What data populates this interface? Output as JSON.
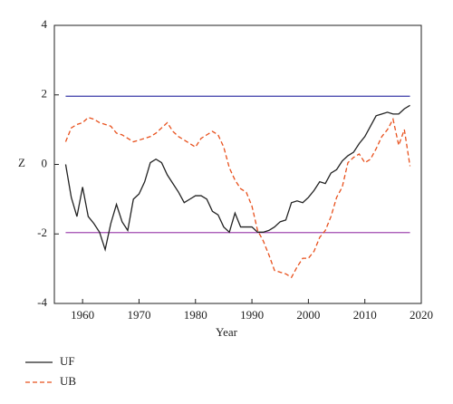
{
  "chart_data": {
    "type": "line",
    "x_label": "Year",
    "y_label": "Z",
    "x": [
      1957,
      1958,
      1959,
      1960,
      1961,
      1962,
      1963,
      1964,
      1965,
      1966,
      1967,
      1968,
      1969,
      1970,
      1971,
      1972,
      1973,
      1974,
      1975,
      1976,
      1977,
      1978,
      1979,
      1980,
      1981,
      1982,
      1983,
      1984,
      1985,
      1986,
      1987,
      1988,
      1989,
      1990,
      1991,
      1992,
      1993,
      1994,
      1995,
      1996,
      1997,
      1998,
      1999,
      2000,
      2001,
      2002,
      2003,
      2004,
      2005,
      2006,
      2007,
      2008,
      2009,
      2010,
      2011,
      2012,
      2013,
      2014,
      2015,
      2016,
      2017,
      2018
    ],
    "series": [
      {
        "name": "UF",
        "color": "#222222",
        "dash": "solid",
        "values": [
          0,
          -0.95,
          -1.5,
          -0.65,
          -1.5,
          -1.7,
          -1.95,
          -2.45,
          -1.7,
          -1.15,
          -1.65,
          -1.9,
          -1.0,
          -0.85,
          -0.5,
          0.05,
          0.15,
          0.05,
          -0.3,
          -0.55,
          -0.8,
          -1.1,
          -1.0,
          -0.9,
          -0.9,
          -1.0,
          -1.35,
          -1.45,
          -1.8,
          -1.95,
          -1.4,
          -1.8,
          -1.8,
          -1.8,
          -1.95,
          -1.95,
          -1.9,
          -1.8,
          -1.65,
          -1.6,
          -1.1,
          -1.05,
          -1.1,
          -0.95,
          -0.75,
          -0.5,
          -0.55,
          -0.25,
          -0.15,
          0.1,
          0.25,
          0.35,
          0.6,
          0.8,
          1.1,
          1.4,
          1.45,
          1.5,
          1.45,
          1.45,
          1.6,
          1.7
        ]
      },
      {
        "name": "UB",
        "color": "#e8501c",
        "dash": "dashed",
        "values": [
          0.65,
          1.05,
          1.15,
          1.2,
          1.35,
          1.3,
          1.2,
          1.15,
          1.1,
          0.9,
          0.85,
          0.75,
          0.65,
          0.7,
          0.75,
          0.8,
          0.9,
          1.05,
          1.2,
          0.95,
          0.8,
          0.7,
          0.6,
          0.5,
          0.75,
          0.85,
          0.95,
          0.85,
          0.5,
          -0.1,
          -0.45,
          -0.7,
          -0.8,
          -1.2,
          -1.9,
          -2.2,
          -2.6,
          -3.05,
          -3.1,
          -3.15,
          -3.25,
          -2.95,
          -2.7,
          -2.7,
          -2.5,
          -2.1,
          -1.9,
          -1.5,
          -0.95,
          -0.65,
          0.05,
          0.2,
          0.3,
          0.05,
          0.15,
          0.45,
          0.8,
          1.0,
          1.3,
          0.55,
          1.0,
          -0.05
        ]
      }
    ],
    "reference_lines": [
      {
        "value": 1.96,
        "color": "#3a3aa8"
      },
      {
        "value": -1.96,
        "color": "#a04ab0"
      }
    ],
    "xlim": [
      1955,
      2020
    ],
    "xticks": [
      1960,
      1970,
      1980,
      1990,
      2000,
      2010,
      2020
    ],
    "ylim": [
      -4,
      4
    ],
    "yticks": [
      -4,
      -2,
      0,
      2,
      4
    ],
    "legend": "below-left"
  }
}
